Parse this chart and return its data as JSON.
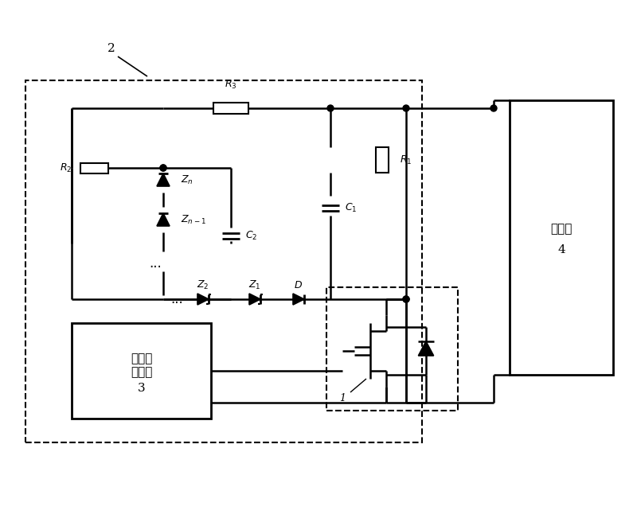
{
  "bg_color": "#ffffff",
  "line_color": "#000000",
  "dashed_color": "#000000",
  "figsize": [
    8.0,
    6.56
  ],
  "dpi": 100,
  "labels": {
    "R3": "R_3",
    "R2": "R_2",
    "R1": "R_1",
    "Zn": "Z_n",
    "Zn1": "Z_{n-1}",
    "C2": "C_2",
    "C1": "C_1",
    "Z2": "Z_2",
    "Z1": "Z_1",
    "D": "D",
    "box2": "2",
    "box3_line1": "门极驱",
    "box3_line2": "动电路",
    "box3_num": "3",
    "box4_line1": "主电路",
    "box4_num": "4",
    "label1": "1"
  }
}
